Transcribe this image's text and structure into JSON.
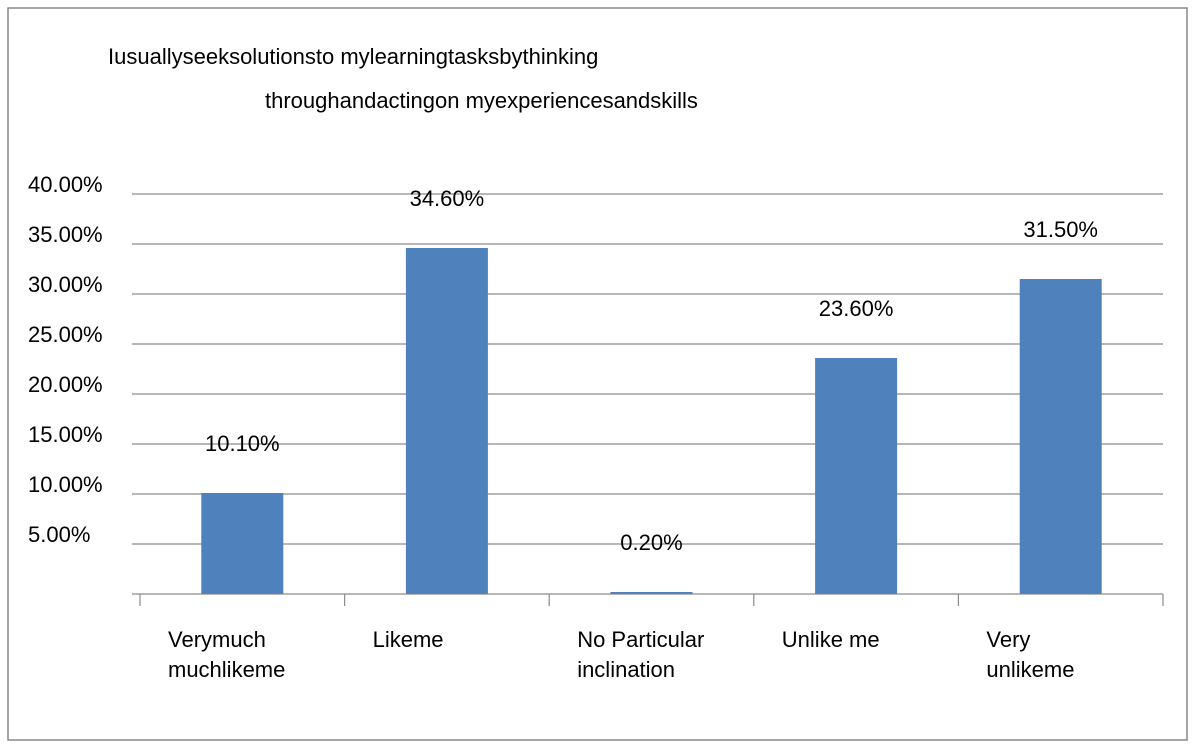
{
  "chart_data": {
    "type": "bar",
    "title": [
      "Iusuallyseeksolutionsto mylearningtasksbythinking",
      "throughandactingon myexperiencesandskills"
    ],
    "categories": [
      "Verymuch muchlikeme",
      "Likeme",
      "No Particular inclination",
      "Unlike me",
      "Very unlikeme"
    ],
    "values": [
      10.1,
      34.6,
      0.2,
      23.6,
      31.5
    ],
    "value_labels": [
      "10.10%",
      "34.60%",
      "0.20%",
      "23.60%",
      "31.50%"
    ],
    "color": "#4f81bd",
    "ylim": [
      0,
      40
    ],
    "yticks": [
      {
        "value": 5,
        "label": "5.00%"
      },
      {
        "value": 10,
        "label": "10.00%"
      },
      {
        "value": 15,
        "label": "15.00%"
      },
      {
        "value": 20,
        "label": "20.00%"
      },
      {
        "value": 25,
        "label": "25.00%"
      },
      {
        "value": 30,
        "label": "30.00%"
      },
      {
        "value": 35,
        "label": "35.00%"
      },
      {
        "value": 40,
        "label": "40.00%"
      }
    ],
    "grid": true
  }
}
